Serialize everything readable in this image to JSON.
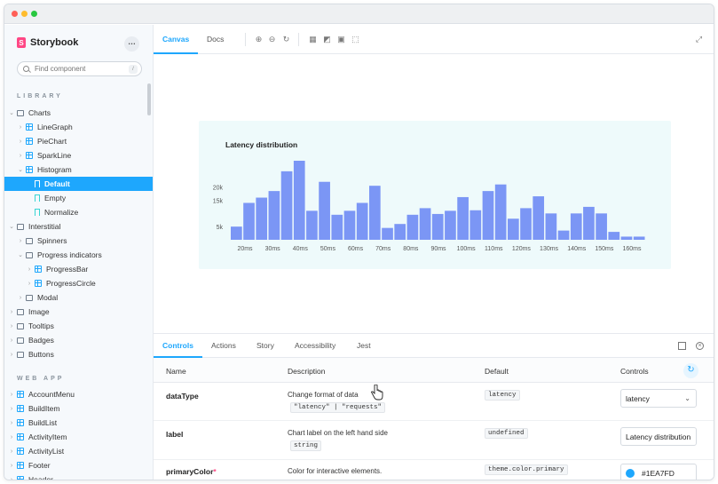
{
  "app": {
    "name": "Storybook",
    "menu_label": "…"
  },
  "search": {
    "placeholder": "Find component",
    "shortcut": "/"
  },
  "sidebar": {
    "library_title": "LIBRARY",
    "webapp_title": "WEB APP",
    "library_items": [
      {
        "label": "Charts",
        "kind": "folder",
        "depth": 0,
        "expanded": true
      },
      {
        "label": "LineGraph",
        "kind": "component",
        "depth": 1,
        "expanded": false
      },
      {
        "label": "PieChart",
        "kind": "component",
        "depth": 1,
        "expanded": false
      },
      {
        "label": "SparkLine",
        "kind": "component",
        "depth": 1,
        "expanded": false
      },
      {
        "label": "Histogram",
        "kind": "component",
        "depth": 1,
        "expanded": true
      },
      {
        "label": "Default",
        "kind": "story",
        "depth": 2,
        "selected": true
      },
      {
        "label": "Empty",
        "kind": "story",
        "depth": 2
      },
      {
        "label": "Normalize",
        "kind": "story",
        "depth": 2
      },
      {
        "label": "Interstitial",
        "kind": "folder",
        "depth": 0,
        "expanded": true
      },
      {
        "label": "Spinners",
        "kind": "folder",
        "depth": 1,
        "expanded": false
      },
      {
        "label": "Progress indicators",
        "kind": "folder",
        "depth": 1,
        "expanded": true
      },
      {
        "label": "ProgressBar",
        "kind": "component",
        "depth": 2,
        "expanded": false
      },
      {
        "label": "ProgressCircle",
        "kind": "component",
        "depth": 2,
        "expanded": false
      },
      {
        "label": "Modal",
        "kind": "folder",
        "depth": 1,
        "expanded": false
      },
      {
        "label": "Image",
        "kind": "folder",
        "depth": 0,
        "expanded": false
      },
      {
        "label": "Tooltips",
        "kind": "folder",
        "depth": 0,
        "expanded": false
      },
      {
        "label": "Badges",
        "kind": "folder",
        "depth": 0,
        "expanded": false
      },
      {
        "label": "Buttons",
        "kind": "folder",
        "depth": 0,
        "expanded": false
      }
    ],
    "webapp_items": [
      {
        "label": "AccountMenu",
        "kind": "component",
        "depth": 0
      },
      {
        "label": "BuildItem",
        "kind": "component",
        "depth": 0
      },
      {
        "label": "BuildList",
        "kind": "component",
        "depth": 0
      },
      {
        "label": "ActivityItem",
        "kind": "component",
        "depth": 0
      },
      {
        "label": "ActivityList",
        "kind": "component",
        "depth": 0
      },
      {
        "label": "Footer",
        "kind": "component",
        "depth": 0
      },
      {
        "label": "Header",
        "kind": "component",
        "depth": 0
      }
    ]
  },
  "toolbar": {
    "tabs": [
      {
        "label": "Canvas",
        "active": true
      },
      {
        "label": "Docs",
        "active": false
      }
    ],
    "tools": [
      "zoom-in-icon",
      "zoom-out-icon",
      "zoom-reset-icon",
      "grid-icon",
      "background-icon",
      "viewport-icon",
      "outline-icon",
      "fullscreen-icon"
    ]
  },
  "chart_data": {
    "type": "bar",
    "title": "Latency distribution",
    "xlabel": "",
    "ylabel": "",
    "x_ticks": [
      "20ms",
      "30ms",
      "40ms",
      "50ms",
      "60ms",
      "70ms",
      "80ms",
      "90ms",
      "100ms",
      "110ms",
      "120ms",
      "130ms",
      "140ms",
      "150ms",
      "160ms"
    ],
    "y_ticks": [
      {
        "value": 5000,
        "label": "5k"
      },
      {
        "value": 15000,
        "label": "15k"
      },
      {
        "value": 20000,
        "label": "20k"
      }
    ],
    "ylim": [
      0,
      30000
    ],
    "values": [
      5000,
      14000,
      16000,
      18500,
      26000,
      30000,
      11000,
      22000,
      9500,
      11000,
      14000,
      20500,
      4500,
      6000,
      9500,
      12000,
      9800,
      11000,
      16200,
      11200,
      18500,
      21000,
      8000,
      12000,
      16500,
      10000,
      3500,
      10000,
      12500,
      10000,
      3000,
      1200,
      1200
    ],
    "bar_color": "#7b96f5",
    "background": "#eefafb"
  },
  "addons": {
    "tabs": [
      {
        "label": "Controls",
        "active": true
      },
      {
        "label": "Actions",
        "active": false
      },
      {
        "label": "Story",
        "active": false
      },
      {
        "label": "Accessibility",
        "active": false
      },
      {
        "label": "Jest",
        "active": false
      }
    ],
    "columns": {
      "name": "Name",
      "description": "Description",
      "default": "Default",
      "controls": "Controls"
    },
    "rows": [
      {
        "name": "dataType",
        "required": false,
        "description": "Change format of data",
        "desc_code": "\"latency\" | \"requests\"",
        "default": "latency",
        "control": "latency",
        "control_type": "select"
      },
      {
        "name": "label",
        "required": false,
        "description": "Chart label on the left hand side",
        "desc_code": "string",
        "default": "undefined",
        "control": "Latency distribution",
        "control_type": "text"
      },
      {
        "name": "primaryColor",
        "required": true,
        "description": "Color for interactive elements.",
        "desc_code": "",
        "default": "theme.color.primary",
        "control": "#1EA7FD",
        "control_type": "color"
      }
    ]
  },
  "colors": {
    "accent": "#1ea7fd",
    "brand": "#ff4785",
    "bar": "#7b96f5"
  }
}
